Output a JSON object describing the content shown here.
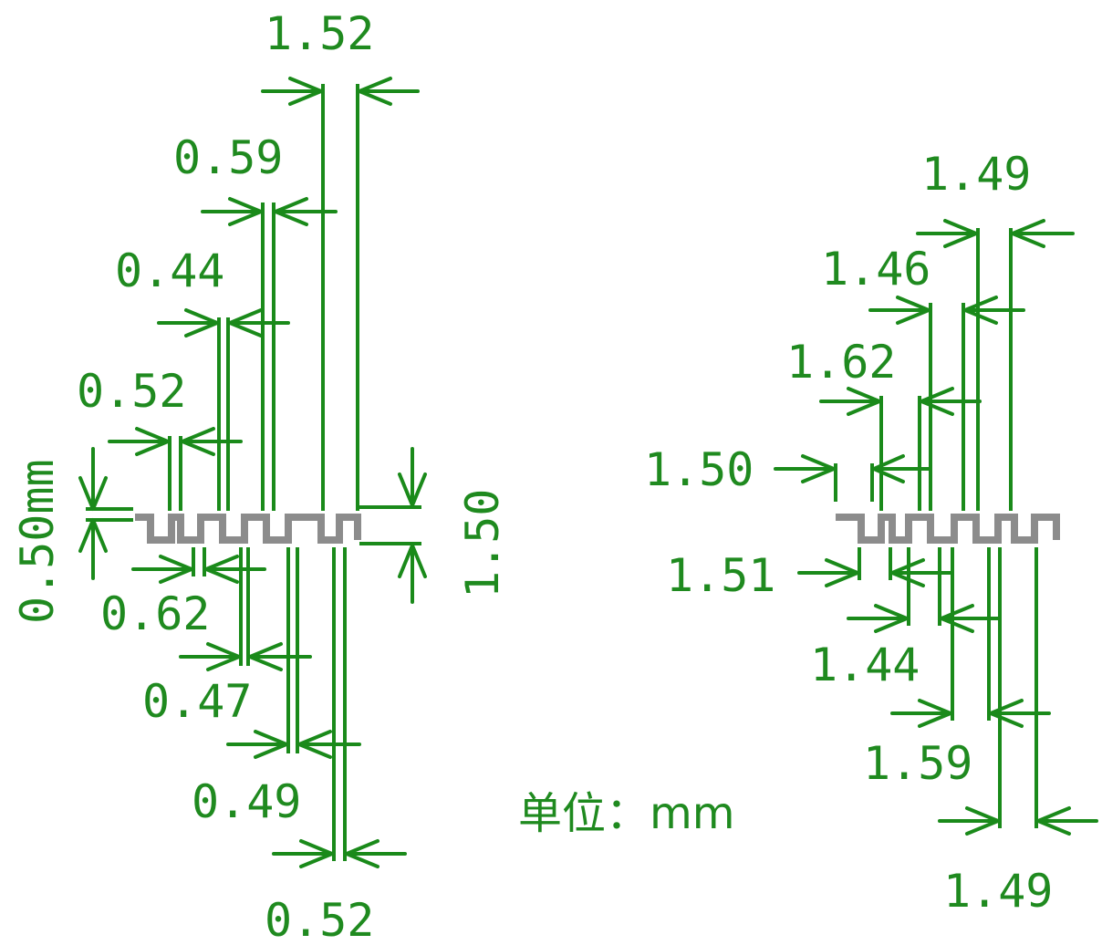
{
  "diagram": {
    "colors": {
      "dimension": "#1a8a1a",
      "trace": "#8c8c8c",
      "background": "#ffffff"
    },
    "unit_label": "单位：mm",
    "left_group": {
      "top_labels": [
        "1.52",
        "0.59",
        "0.44",
        "0.52"
      ],
      "left_vertical_label": "0.50mm",
      "right_vertical_label": "1.50",
      "bottom_labels": [
        "0.62",
        "0.47",
        "0.49",
        "0.52"
      ]
    },
    "right_group": {
      "top_labels": [
        "1.49",
        "1.46",
        "1.62",
        "1.50"
      ],
      "bottom_labels": [
        "1.51",
        "1.44",
        "1.59",
        "1.49"
      ]
    }
  }
}
